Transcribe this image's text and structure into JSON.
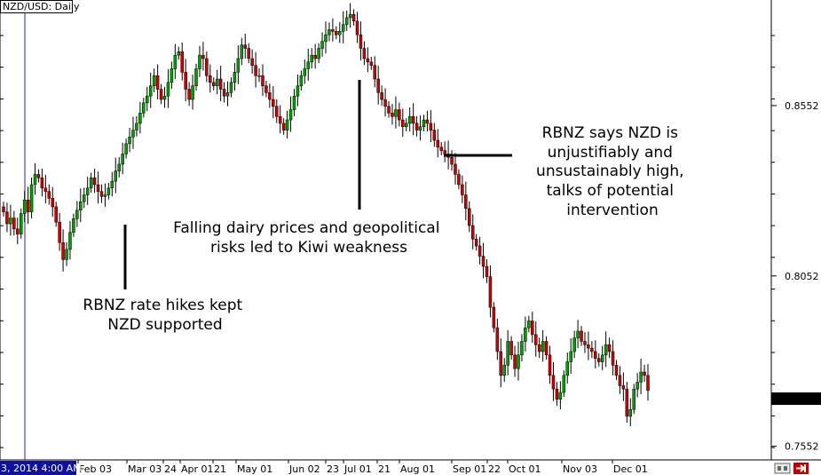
{
  "chart_data": {
    "type": "candlestick",
    "symbol_label": "NZD/USD: Daily",
    "y_ticks": [
      "0.8552",
      "0.8052",
      "0.7552"
    ],
    "y_tick_values": [
      0.8552,
      0.8052,
      0.7552
    ],
    "ylim": [
      0.7512,
      0.8862
    ],
    "last_price": "0.7716",
    "last_price_value": 0.7716,
    "crosshair_label": "3, 2014 4:00 AM",
    "x_ticks": [
      "Feb 03",
      "Mar 03",
      "24",
      "Apr 01",
      "21",
      "May 01",
      "Jun 02",
      "23",
      "Jul 01",
      "21",
      "Aug 01",
      "Sep 01",
      "22",
      "Oct 01",
      "Nov 03",
      "Dec 01"
    ],
    "bull_color": "#00a000",
    "bear_color": "#d00000",
    "closes": [
      0.824,
      0.8205,
      0.8222,
      0.819,
      0.8175,
      0.8235,
      0.8275,
      0.824,
      0.832,
      0.835,
      0.834,
      0.831,
      0.83,
      0.828,
      0.8255,
      0.821,
      0.815,
      0.81,
      0.813,
      0.818,
      0.822,
      0.8245,
      0.827,
      0.829,
      0.831,
      0.834,
      0.832,
      0.83,
      0.8285,
      0.829,
      0.831,
      0.833,
      0.836,
      0.838,
      0.841,
      0.844,
      0.846,
      0.848,
      0.85,
      0.853,
      0.856,
      0.858,
      0.861,
      0.864,
      0.86,
      0.857,
      0.858,
      0.862,
      0.866,
      0.87,
      0.871,
      0.865,
      0.86,
      0.857,
      0.861,
      0.866,
      0.87,
      0.869,
      0.864,
      0.862,
      0.861,
      0.863,
      0.86,
      0.858,
      0.859,
      0.862,
      0.865,
      0.869,
      0.873,
      0.872,
      0.869,
      0.867,
      0.864,
      0.864,
      0.861,
      0.859,
      0.857,
      0.855,
      0.852,
      0.85,
      0.848,
      0.851,
      0.854,
      0.858,
      0.861,
      0.864,
      0.866,
      0.868,
      0.87,
      0.869,
      0.872,
      0.874,
      0.876,
      0.8775,
      0.877,
      0.876,
      0.877,
      0.879,
      0.881,
      0.882,
      0.88,
      0.876,
      0.872,
      0.869,
      0.868,
      0.867,
      0.863,
      0.859,
      0.857,
      0.855,
      0.853,
      0.852,
      0.854,
      0.851,
      0.849,
      0.85,
      0.852,
      0.85,
      0.848,
      0.849,
      0.851,
      0.85,
      0.848,
      0.845,
      0.843,
      0.842,
      0.841,
      0.84,
      0.838,
      0.835,
      0.832,
      0.829,
      0.825,
      0.82,
      0.816,
      0.814,
      0.811,
      0.808,
      0.805,
      0.796,
      0.79,
      0.783,
      0.776,
      0.779,
      0.786,
      0.782,
      0.778,
      0.782,
      0.786,
      0.79,
      0.792,
      0.788,
      0.785,
      0.783,
      0.786,
      0.782,
      0.776,
      0.772,
      0.769,
      0.771,
      0.776,
      0.78,
      0.783,
      0.787,
      0.789,
      0.786,
      0.785,
      0.784,
      0.783,
      0.781,
      0.78,
      0.782,
      0.785,
      0.783,
      0.779,
      0.776,
      0.773,
      0.772,
      0.764,
      0.766,
      0.772,
      0.774,
      0.777,
      0.776,
      0.7716
    ]
  },
  "annotations": [
    {
      "lines": [
        "RBNZ rate hikes kept",
        "NZD supported"
      ]
    },
    {
      "lines": [
        "Falling dairy prices and geopolitical",
        "risks led to Kiwi weakness"
      ]
    },
    {
      "lines": [
        "RBNZ says NZD is",
        "unjustifiably and",
        "unsustainably high,",
        "talks of potential",
        "intervention"
      ]
    }
  ],
  "colors": {
    "axis": "#000000",
    "crosshair_bg": "#1010a0",
    "crosshair_line": "#2020c0",
    "price_marker_bg": "#000000",
    "price_marker_text": "#ffffff"
  },
  "icons": [
    "scroll-toggle-icon",
    "exit-arrow-icon"
  ]
}
